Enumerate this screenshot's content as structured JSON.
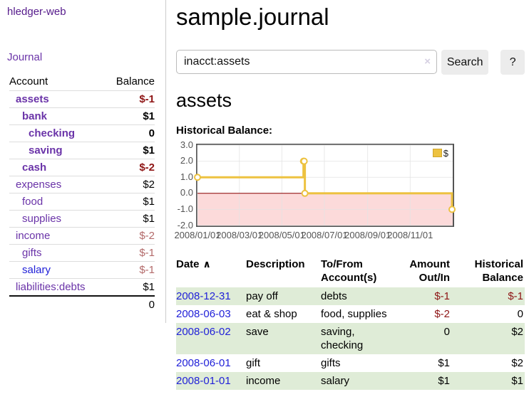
{
  "sidebar": {
    "brand": "hledger-web",
    "nav_journal": "Journal",
    "accounts_table": {
      "headers": {
        "account": "Account",
        "balance": "Balance"
      },
      "rows": [
        {
          "name": "assets",
          "depth": 1,
          "bold": true,
          "balance": "$-1",
          "balance_style": "neg-strong"
        },
        {
          "name": "bank",
          "depth": 2,
          "bold": true,
          "balance": "$1",
          "balance_style": "pos"
        },
        {
          "name": "checking",
          "depth": 3,
          "bold": true,
          "balance": "0",
          "balance_style": "pos"
        },
        {
          "name": "saving",
          "depth": 3,
          "bold": true,
          "balance": "$1",
          "balance_style": "pos"
        },
        {
          "name": "cash",
          "depth": 2,
          "bold": true,
          "balance": "$-2",
          "balance_style": "neg-strong"
        },
        {
          "name": "expenses",
          "depth": 1,
          "bold": false,
          "balance": "$2",
          "balance_style": "pos"
        },
        {
          "name": "food",
          "depth": 2,
          "bold": false,
          "balance": "$1",
          "balance_style": "pos"
        },
        {
          "name": "supplies",
          "depth": 2,
          "bold": false,
          "balance": "$1",
          "balance_style": "pos"
        },
        {
          "name": "income",
          "depth": 1,
          "bold": false,
          "balance": "$-2",
          "balance_style": "neg-faded"
        },
        {
          "name": "gifts",
          "depth": 2,
          "bold": false,
          "balance": "$-1",
          "balance_style": "neg-faded"
        },
        {
          "name": "salary",
          "depth": 2,
          "bold": false,
          "link_style": "unvisited",
          "balance": "$-1",
          "balance_style": "neg-faded"
        },
        {
          "name": "liabilities:debts",
          "depth": 1,
          "bold": false,
          "balance": "$1",
          "balance_style": "pos"
        }
      ],
      "total": "0"
    }
  },
  "header": {
    "title": "sample.journal"
  },
  "search": {
    "value": "inacct:assets",
    "clear_icon_glyph": "×",
    "button_label": "Search",
    "help_label": "?"
  },
  "account_page": {
    "title": "assets",
    "chart_title": "Historical Balance:"
  },
  "chart_data": {
    "type": "line",
    "title": "Historical Balance:",
    "series": [
      {
        "name": "$",
        "color": "#edc240",
        "step": true,
        "points": [
          [
            "2008-01-01",
            1
          ],
          [
            "2008-06-01",
            2
          ],
          [
            "2008-06-02",
            2
          ],
          [
            "2008-06-03",
            0
          ],
          [
            "2008-12-31",
            -1
          ]
        ]
      }
    ],
    "x_range": [
      "2008-01-01",
      "2009-01-01"
    ],
    "ylim": [
      -2,
      3
    ],
    "y_ticks": [
      3,
      2,
      1,
      0,
      -1,
      -2
    ],
    "y_tick_labels": [
      "3.0",
      "2.0",
      "1.0",
      "0.0",
      "-1.0",
      "-2.0"
    ],
    "x_ticks": [
      "2008-01-01",
      "2008-03-01",
      "2008-05-01",
      "2008-07-01",
      "2008-09-01",
      "2008-11-01"
    ],
    "x_tick_labels": [
      "2008/01/01",
      "2008/03/01",
      "2008/05/01",
      "2008/07/01",
      "2008/09/01",
      "2008/11/01"
    ],
    "grid": true,
    "legend": {
      "label": "$",
      "position": "top-right"
    },
    "zero_line_color": "#8b0000",
    "negative_region_fill": "#fcdada",
    "grid_color": "#e3e3e3"
  },
  "register_table": {
    "headers": {
      "date": "Date",
      "sort_icon_glyph": "∧",
      "description": "Description",
      "accounts": "To/From Account(s)",
      "amount": "Amount Out/In",
      "balance": "Historical Balance"
    },
    "rows": [
      {
        "date": "2008-12-31",
        "description": "pay off",
        "accounts": "debts",
        "amount": "$-1",
        "amount_neg": true,
        "balance": "$-1",
        "balance_neg": true,
        "shaded": true
      },
      {
        "date": "2008-06-03",
        "description": "eat & shop",
        "accounts": "food, supplies",
        "amount": "$-2",
        "amount_neg": true,
        "balance": "0",
        "balance_neg": false,
        "shaded": false
      },
      {
        "date": "2008-06-02",
        "description": "save",
        "accounts": "saving, checking",
        "amount": "0",
        "amount_neg": false,
        "balance": "$2",
        "balance_neg": false,
        "shaded": true
      },
      {
        "date": "2008-06-01",
        "description": "gift",
        "accounts": "gifts",
        "amount": "$1",
        "amount_neg": false,
        "balance": "$2",
        "balance_neg": false,
        "shaded": false
      },
      {
        "date": "2008-01-01",
        "description": "income",
        "accounts": "salary",
        "amount": "$1",
        "amount_neg": false,
        "balance": "$1",
        "balance_neg": false,
        "shaded": true
      }
    ]
  },
  "colors": {
    "accent_gold": "#edc240",
    "negative_strong": "#8e1515",
    "negative_faded": "#b36a6a",
    "row_shade_green": "#dfecd7",
    "link_purple": "#6a33a8",
    "link_blue": "#2121d8",
    "zero_line_red": "#8b0000",
    "negative_region_pink": "#fcdada",
    "chart_border_gray": "#545454"
  }
}
